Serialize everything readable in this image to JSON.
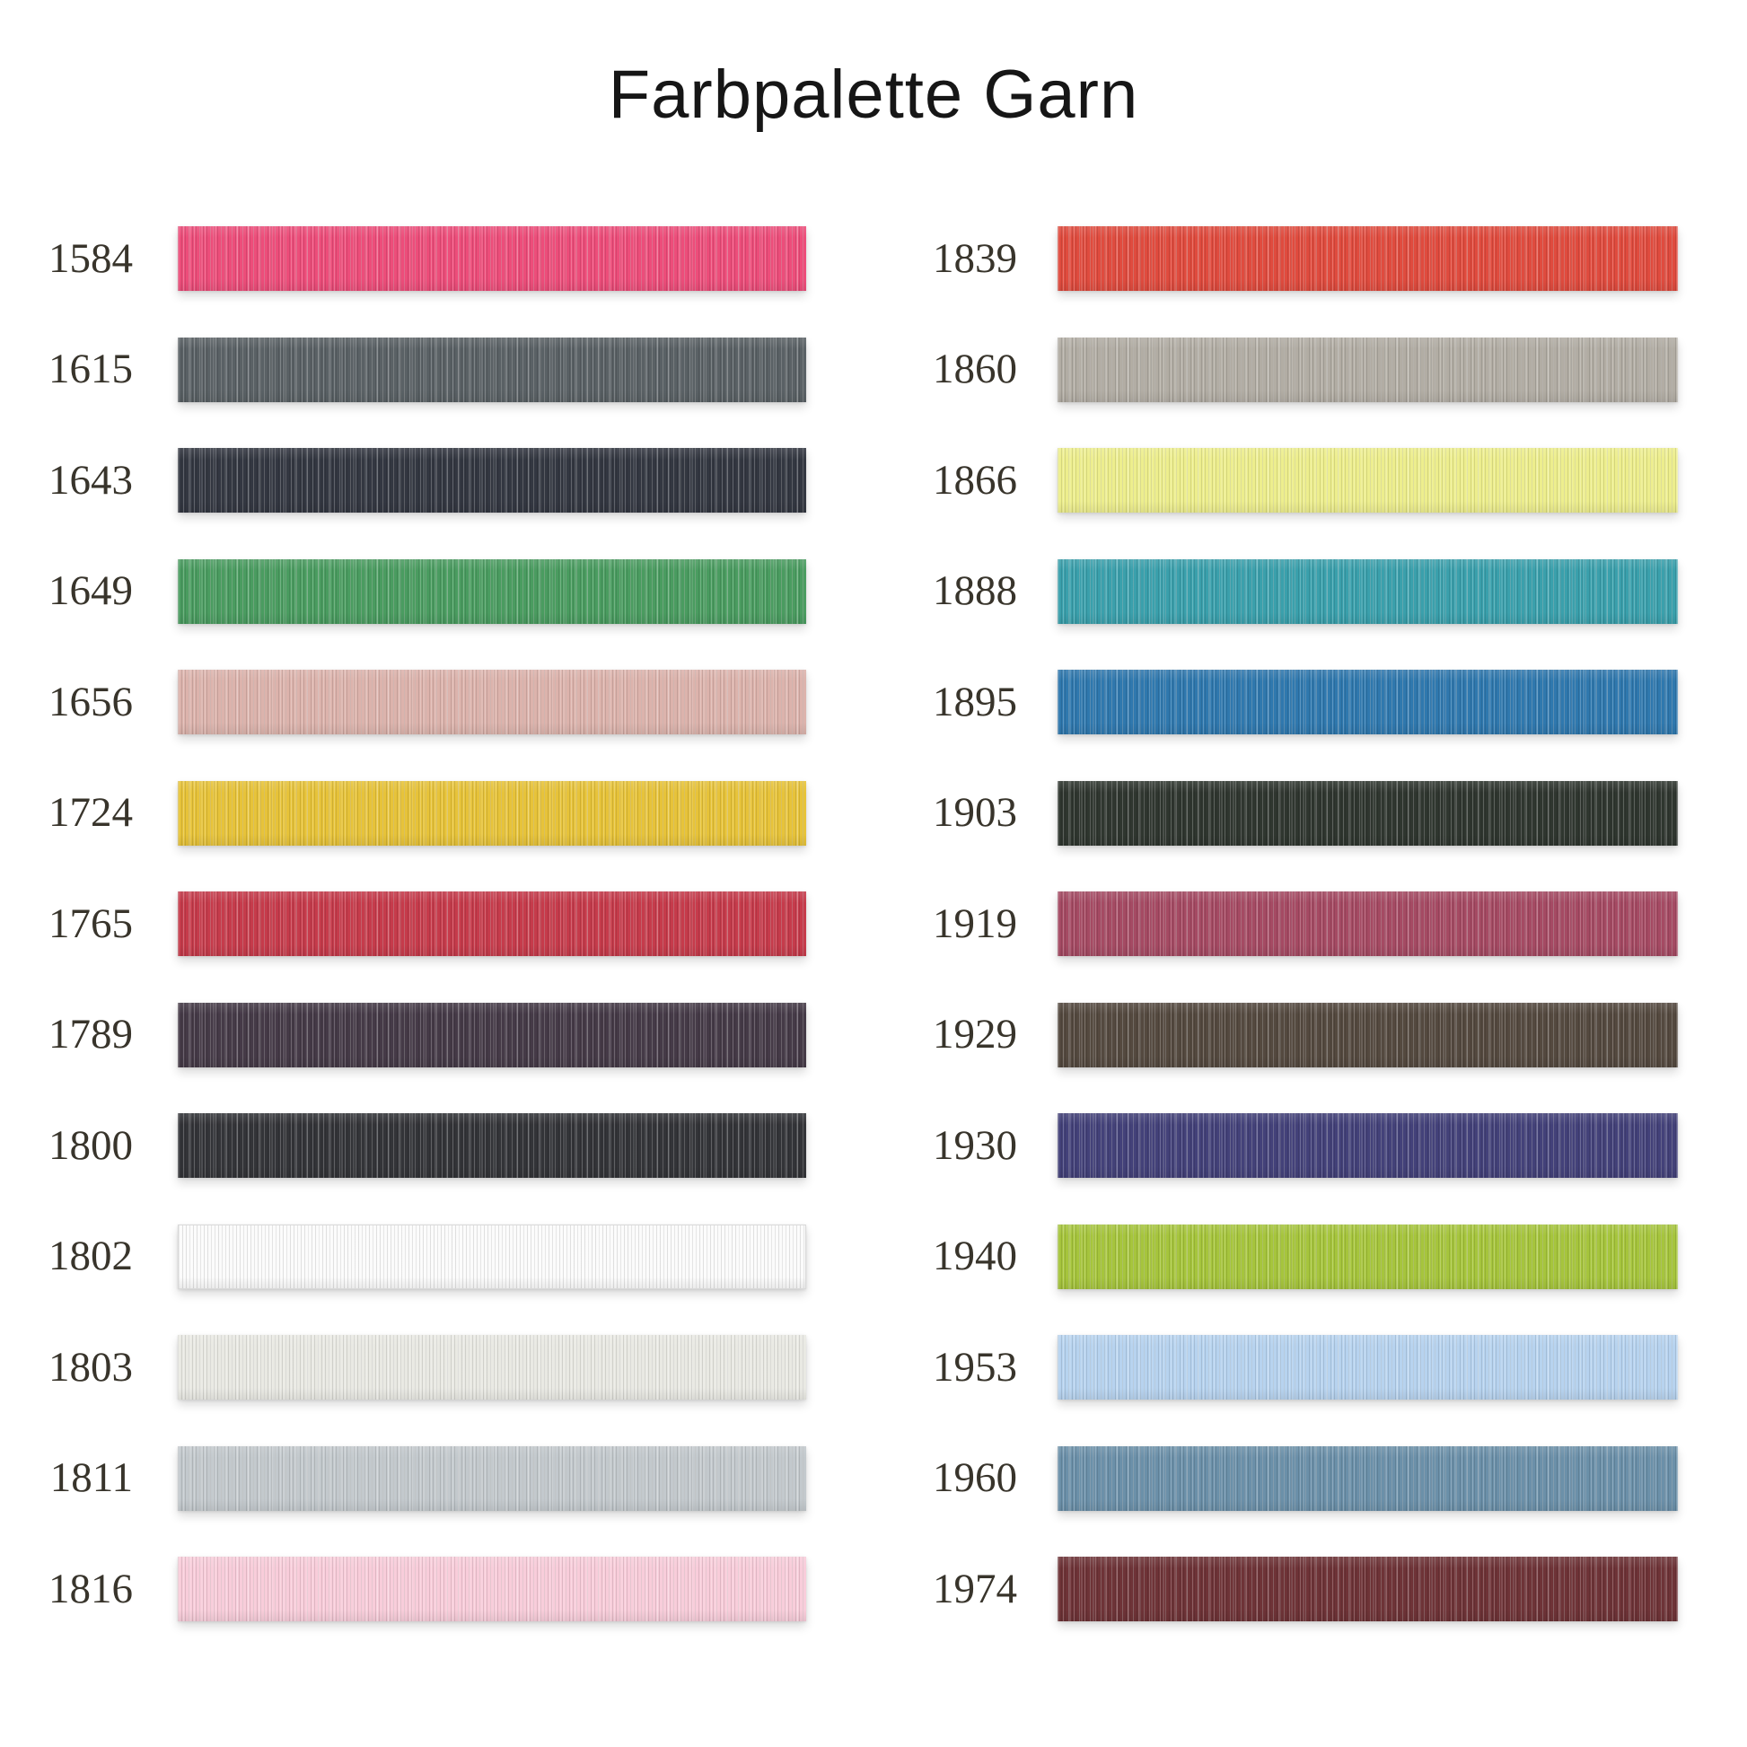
{
  "title": "Farbpalette Garn",
  "chart_data": {
    "type": "table",
    "title": "Farbpalette Garn",
    "description_columns": [
      "yarn color code",
      "swatch color"
    ],
    "columns": [
      {
        "items": [
          {
            "code": "1584",
            "color": "#ed4d7a"
          },
          {
            "code": "1615",
            "color": "#5a6165"
          },
          {
            "code": "1643",
            "color": "#333741"
          },
          {
            "code": "1649",
            "color": "#4a9c60"
          },
          {
            "code": "1656",
            "color": "#dcb3ac"
          },
          {
            "code": "1724",
            "color": "#e7c339"
          },
          {
            "code": "1765",
            "color": "#c63b4b"
          },
          {
            "code": "1789",
            "color": "#453a47"
          },
          {
            "code": "1800",
            "color": "#333438"
          },
          {
            "code": "1802",
            "color": "#fbfbfb"
          },
          {
            "code": "1803",
            "color": "#e9e9e3"
          },
          {
            "code": "1811",
            "color": "#c3c9cd"
          },
          {
            "code": "1816",
            "color": "#f8cdda"
          }
        ]
      },
      {
        "items": [
          {
            "code": "1839",
            "color": "#e04b3e"
          },
          {
            "code": "1860",
            "color": "#b2ada4"
          },
          {
            "code": "1866",
            "color": "#edee8d"
          },
          {
            "code": "1888",
            "color": "#3aa0ac"
          },
          {
            "code": "1895",
            "color": "#2f78ae"
          },
          {
            "code": "1903",
            "color": "#2f362f"
          },
          {
            "code": "1919",
            "color": "#a54a63"
          },
          {
            "code": "1929",
            "color": "#54493f"
          },
          {
            "code": "1930",
            "color": "#434179"
          },
          {
            "code": "1940",
            "color": "#a6c53c"
          },
          {
            "code": "1953",
            "color": "#b7d3ef"
          },
          {
            "code": "1960",
            "color": "#6b90a9"
          },
          {
            "code": "1974",
            "color": "#6e3337"
          }
        ]
      }
    ]
  }
}
